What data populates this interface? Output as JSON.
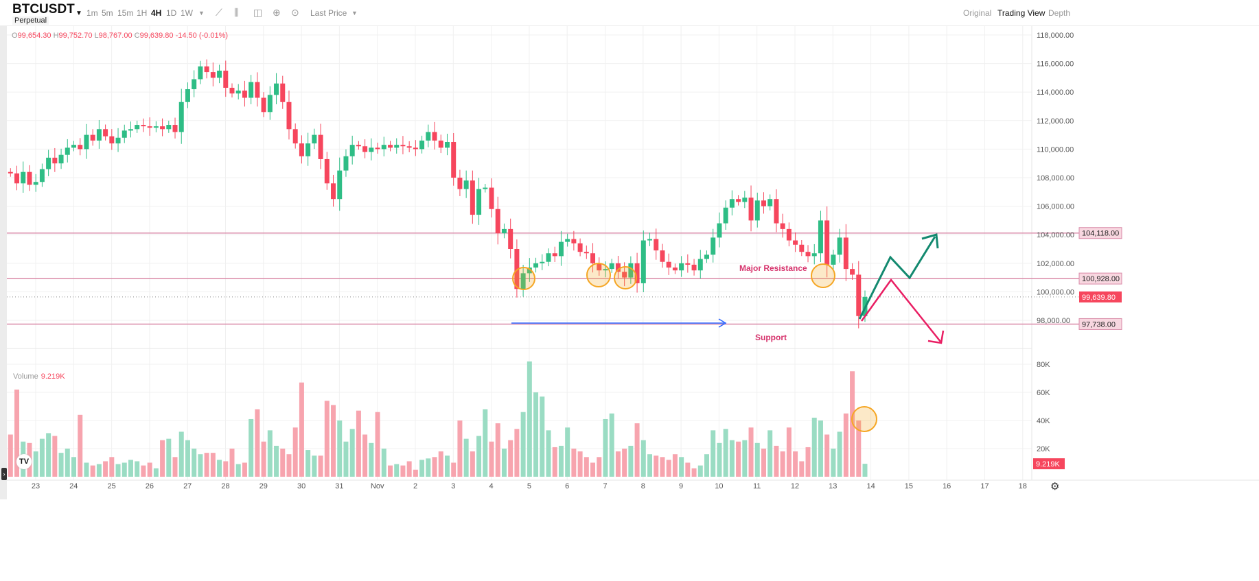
{
  "header": {
    "symbol": "BTCUSDT",
    "contract": "Perpetual",
    "timeframes": [
      "1m",
      "5m",
      "15m",
      "1H",
      "4H",
      "1D",
      "1W"
    ],
    "active_timeframe": "4H",
    "price_type": "Last Price",
    "views": [
      "Original",
      "Trading View",
      "Depth"
    ],
    "active_view": "Trading View"
  },
  "ohlc_legend": {
    "o_label": "O",
    "o": "99,654.30",
    "h_label": "H",
    "h": "99,752.70",
    "l_label": "L",
    "l": "98,767.00",
    "c_label": "C",
    "c": "99,639.80",
    "change": "-14.50 (-0.01%)"
  },
  "volume_legend": {
    "label": "Volume",
    "value": "9.219K"
  },
  "colors": {
    "up": "#2ebd85",
    "down": "#f6465d",
    "level_line": "#d98aa8",
    "annotation_text": "#d6336c",
    "arrow_blue": "#2962ff",
    "arrow_green": "#13896f",
    "arrow_red": "#e91e63",
    "circle": "#f5a623"
  },
  "chart_data": {
    "type": "candlestick",
    "interval": "4H",
    "start": "Oct 22 16:00",
    "x_tick_labels": [
      "23",
      "24",
      "25",
      "26",
      "27",
      "28",
      "29",
      "30",
      "31",
      "Nov",
      "2",
      "3",
      "4",
      "5",
      "6",
      "7",
      "8",
      "9",
      "10",
      "11",
      "12",
      "13",
      "14",
      "15",
      "16",
      "17",
      "18"
    ],
    "y_tick_labels": [
      "118,000.00",
      "116,000.00",
      "114,000.00",
      "112,000.00",
      "110,000.00",
      "108,000.00",
      "106,000.00",
      "104,000.00",
      "102,000.00",
      "100,000.00",
      "98,000.00"
    ],
    "ylim": [
      97000,
      118500
    ],
    "closes": [
      108300,
      107600,
      108400,
      107500,
      107700,
      108600,
      109400,
      109000,
      109600,
      110100,
      110300,
      110000,
      111000,
      110600,
      111400,
      110900,
      110400,
      110800,
      111300,
      111400,
      111700,
      111600,
      111500,
      111600,
      111400,
      111700,
      111200,
      113300,
      114200,
      114900,
      115800,
      115400,
      115000,
      115500,
      114300,
      113900,
      114100,
      113600,
      114700,
      113600,
      112600,
      113800,
      114600,
      113300,
      111400,
      110400,
      109500,
      110400,
      111000,
      109300,
      107600,
      106500,
      108500,
      109500,
      110300,
      110200,
      109800,
      110100,
      110000,
      110300,
      110100,
      110300,
      110200,
      110100,
      110000,
      110600,
      111200,
      110600,
      110100,
      110500,
      108000,
      107200,
      107800,
      105400,
      107200,
      107300,
      105800,
      104100,
      104400,
      103000,
      100200,
      101300,
      101700,
      102000,
      102100,
      102700,
      102500,
      103500,
      103700,
      103400,
      102800,
      102700,
      102000,
      101500,
      101600,
      102000,
      101400,
      101000,
      102000,
      100600,
      103600,
      103700,
      102900,
      102100,
      101700,
      101500,
      102000,
      101900,
      101500,
      102300,
      102600,
      103800,
      104800,
      105900,
      106500,
      106300,
      106600,
      105000,
      106400,
      106000,
      106500,
      104800,
      104400,
      103600,
      103300,
      102800,
      102500,
      102700,
      105000,
      101900,
      102600,
      103800,
      101600,
      101200,
      98300,
      99640
    ],
    "first_open": 108400,
    "volume_k": [
      30,
      62,
      25,
      24,
      18,
      27,
      31,
      29,
      17,
      20,
      14,
      44,
      10,
      8,
      9,
      11,
      14,
      9,
      10,
      12,
      11,
      8,
      10,
      6,
      26,
      27,
      14,
      32,
      26,
      20,
      16,
      17,
      17,
      12,
      11,
      20,
      9,
      10,
      41,
      48,
      25,
      33,
      22,
      20,
      16,
      35,
      67,
      19,
      15,
      15,
      54,
      51,
      40,
      25,
      34,
      47,
      30,
      24,
      46,
      20,
      8,
      9,
      8,
      11,
      5,
      12,
      13,
      14,
      18,
      15,
      10,
      40,
      27,
      18,
      29,
      48,
      25,
      38,
      20,
      26,
      34,
      46,
      82,
      60,
      57,
      33,
      21,
      22,
      35,
      20,
      18,
      14,
      10,
      14,
      41,
      45,
      18,
      20,
      22,
      38,
      26,
      16,
      15,
      14,
      12,
      16,
      14,
      10,
      6,
      8,
      16,
      33,
      24,
      34,
      26,
      25,
      26,
      35,
      24,
      20,
      33,
      22,
      18,
      35,
      18,
      11,
      21,
      42,
      40,
      30,
      20,
      32,
      45,
      75,
      40,
      9.219
    ],
    "volume_tick_labels": [
      "80K",
      "60K",
      "40K",
      "20K"
    ],
    "volume_ticks": [
      80,
      60,
      40,
      20
    ],
    "levels": [
      {
        "price": 104118,
        "label": "104,118.00"
      },
      {
        "price": 100928,
        "label": "100,928.00"
      },
      {
        "price": 97738,
        "label": "97,738.00"
      }
    ],
    "last_price": {
      "price": 99639.8,
      "label": "99,639.80"
    },
    "last_volume_label": "9.219K",
    "annotations": {
      "resistance": "Major Resistance",
      "support": "Support"
    }
  }
}
